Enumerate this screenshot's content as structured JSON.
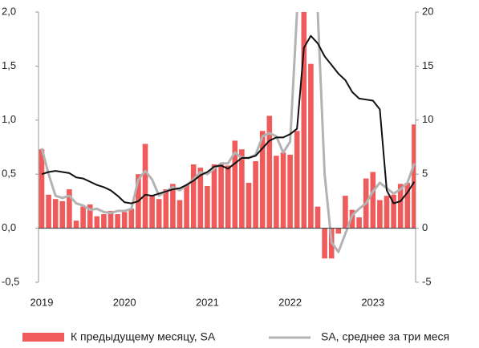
{
  "chart_data": {
    "type": "bar_line",
    "categories": [
      "2019",
      null,
      null,
      null,
      null,
      null,
      null,
      null,
      null,
      null,
      null,
      null,
      "2020",
      null,
      null,
      null,
      null,
      null,
      null,
      null,
      null,
      null,
      null,
      null,
      "2021",
      null,
      null,
      null,
      null,
      null,
      null,
      null,
      null,
      null,
      null,
      null,
      "2022",
      null,
      null,
      null,
      null,
      null,
      null,
      null,
      null,
      null,
      null,
      null,
      "2023",
      null,
      null,
      null,
      null,
      null,
      null
    ],
    "series": [
      {
        "name": "К предыдущему месяцу, SA",
        "color": "#ef5b5b",
        "values": [
          0.73,
          0.31,
          0.27,
          0.25,
          0.36,
          0.07,
          0.2,
          0.22,
          0.11,
          0.13,
          0.16,
          0.13,
          0.15,
          0.18,
          0.5,
          0.78,
          0.3,
          0.27,
          0.36,
          0.41,
          0.26,
          0.4,
          0.59,
          0.56,
          0.39,
          0.59,
          0.59,
          0.58,
          0.81,
          0.73,
          0.42,
          0.62,
          0.9,
          1.04,
          0.67,
          0.7,
          0.68,
          0.9,
          2.0,
          1.52,
          0.2,
          -0.28,
          -0.28,
          -0.05,
          0.3,
          0.17,
          0.1,
          0.46,
          0.52,
          0.26,
          0.3,
          0.31,
          0.41,
          0.42,
          0.96
        ]
      },
      {
        "name": "SA, среднее за три меся",
        "color": "#b3b3b3",
        "axis": "y2",
        "values": [
          7.4,
          5.0,
          3.0,
          2.8,
          3.0,
          2.3,
          2.1,
          1.7,
          1.8,
          1.5,
          1.4,
          1.6,
          1.6,
          1.8,
          4.5,
          5.3,
          4.5,
          3.0,
          3.4,
          3.8,
          3.5,
          4.0,
          4.5,
          5.2,
          5.0,
          5.5,
          6.0,
          6.0,
          7.0,
          6.5,
          6.5,
          6.8,
          8.5,
          8.8,
          8.5,
          7.0,
          8.0,
          20,
          35,
          40,
          20,
          5,
          -1.3,
          -2.2,
          -0.5,
          1.2,
          1.8,
          2.3,
          3.4,
          4.2,
          3.7,
          3.2,
          3.6,
          4.2,
          6.0
        ]
      },
      {
        "color": "#111111",
        "axis": "y2",
        "values": [
          5.0,
          5.2,
          5.3,
          5.2,
          5.1,
          4.7,
          4.6,
          4.3,
          4.0,
          3.8,
          3.5,
          3.0,
          2.4,
          2.3,
          2.5,
          3.1,
          3.0,
          3.2,
          3.4,
          3.6,
          3.7,
          4.0,
          4.4,
          4.9,
          5.2,
          5.7,
          5.8,
          5.5,
          6.0,
          6.5,
          6.5,
          6.7,
          7.4,
          8.1,
          8.4,
          8.4,
          8.7,
          9.2,
          16.7,
          17.8,
          17.1,
          15.9,
          15.1,
          14.3,
          13.7,
          12.6,
          12.0,
          11.9,
          11.8,
          11.0,
          3.5,
          2.3,
          2.5,
          3.3,
          4.3
        ]
      }
    ],
    "ylim": [
      -0.5,
      2.0
    ],
    "yticks": [
      {
        "value": -0.5,
        "label": "-0,5"
      },
      {
        "value": 0,
        "label": "0,0"
      },
      {
        "value": 0.5,
        "label": "0,5"
      },
      {
        "value": 1,
        "label": "1,0"
      },
      {
        "value": 1.5,
        "label": "1,5"
      },
      {
        "value": 2,
        "label": "2,0"
      }
    ],
    "y2lim": [
      -5,
      20
    ],
    "y2ticks": [
      -5,
      0,
      5,
      10,
      15,
      20
    ]
  }
}
